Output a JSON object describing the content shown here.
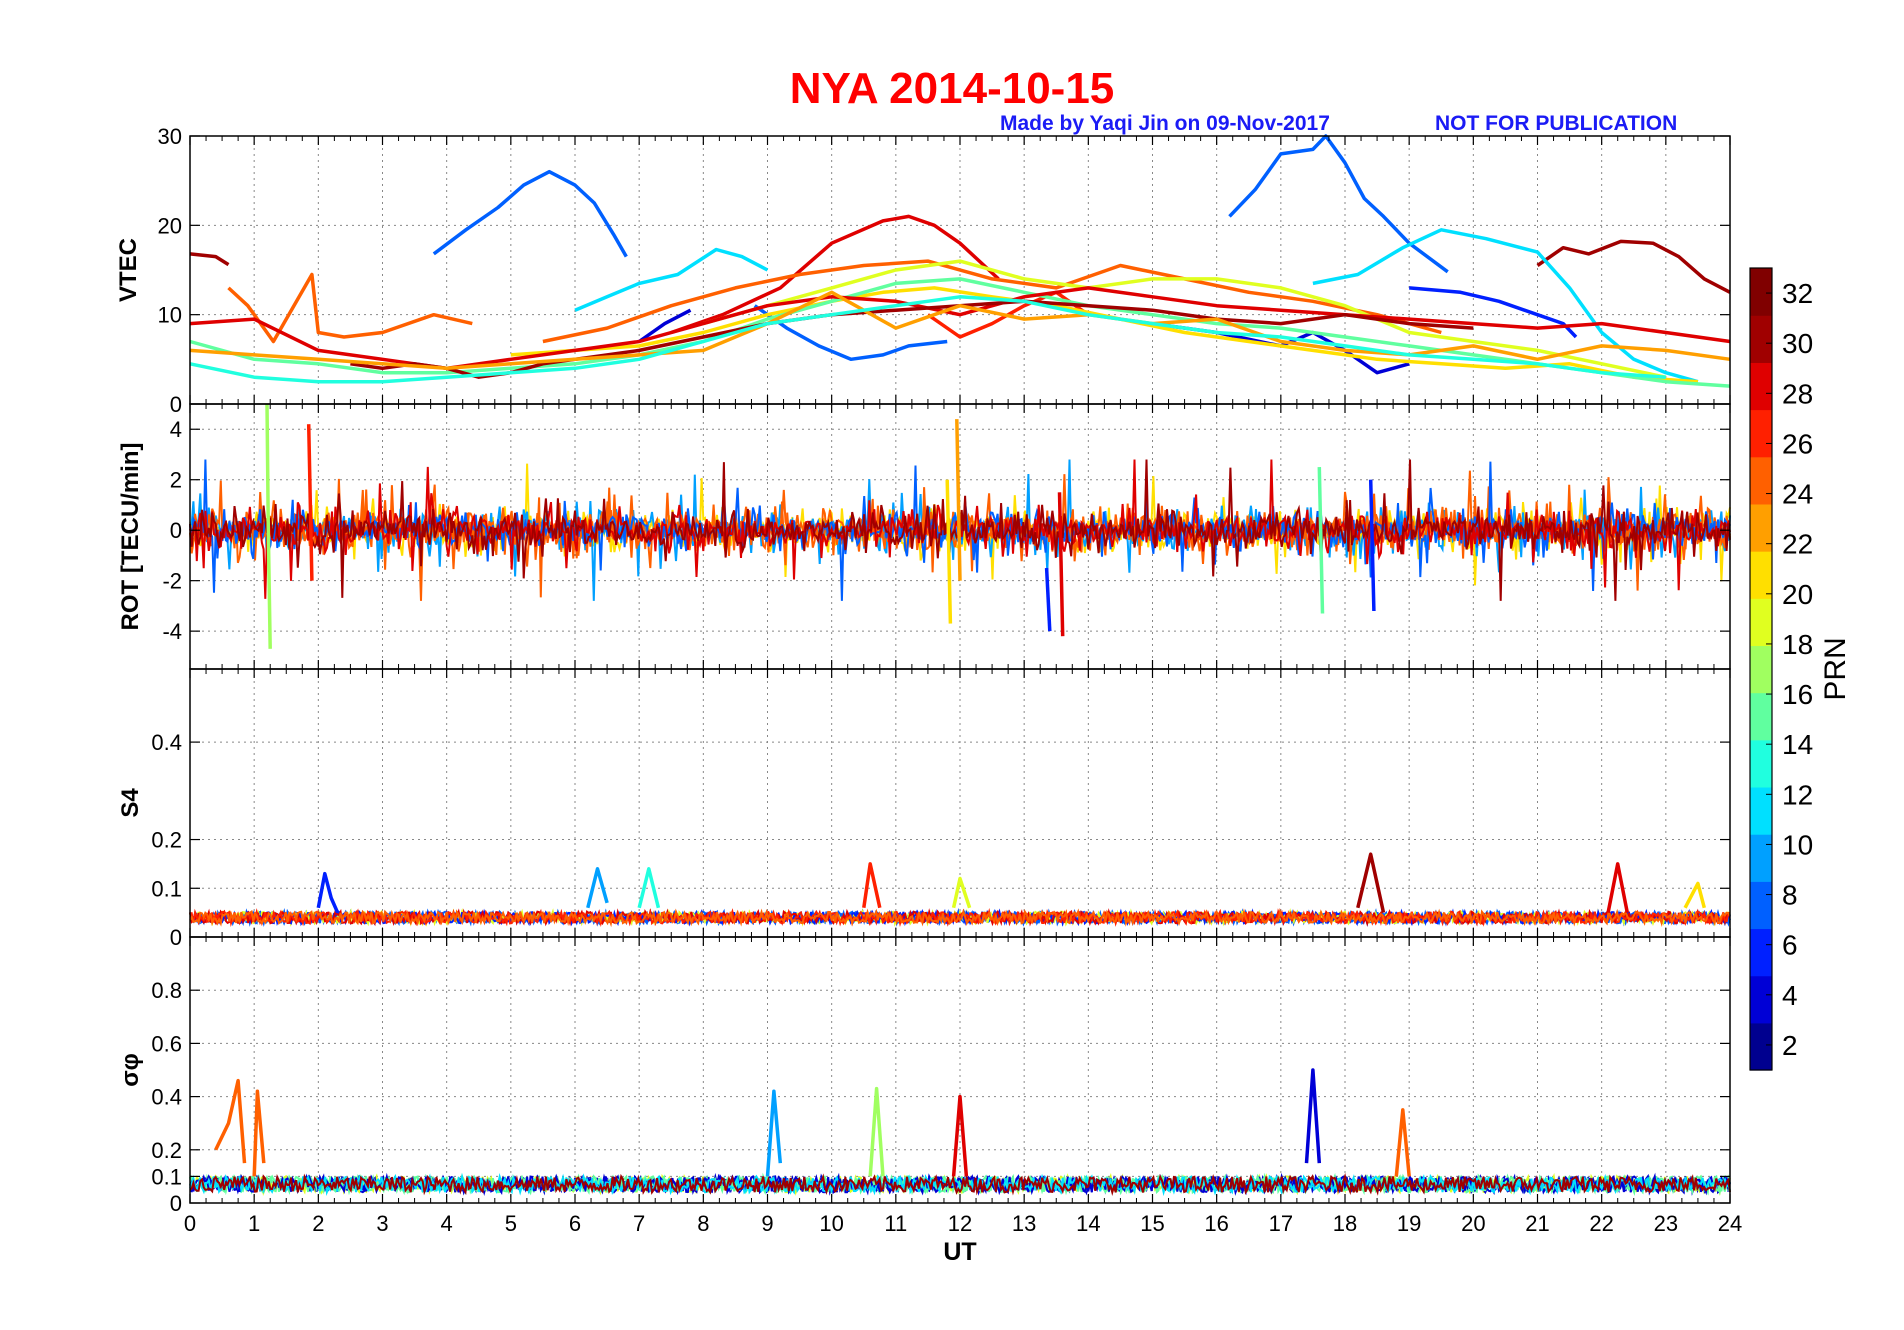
{
  "figure": {
    "title": "NYA   2014-10-15",
    "credit": "Made by Yaqi Jin on 09-Nov-2017",
    "notice": "NOT FOR PUBLICATION"
  },
  "colors": {
    "title": "#ff0000",
    "annotation": "#1b1bf5",
    "colormap": [
      "#00008f",
      "#0000d6",
      "#0020ff",
      "#0060ff",
      "#00a0ff",
      "#00e0ff",
      "#20ffdf",
      "#60ff9f",
      "#a0ff60",
      "#e0ff20",
      "#ffdf00",
      "#ff9f00",
      "#ff6000",
      "#ff2000",
      "#df0000",
      "#a00000",
      "#800000"
    ]
  },
  "chart_data": [
    {
      "panel": "vtec",
      "type": "line",
      "ylabel": "VTEC",
      "xlim": [
        0,
        24
      ],
      "ylim": [
        0,
        30
      ],
      "yticks": [
        0,
        10,
        20,
        30
      ],
      "grid": true,
      "series": [
        {
          "prn": 7,
          "x": [
            3.8,
            4.3,
            4.8,
            5.2,
            5.6,
            6.0,
            6.3,
            6.6,
            6.8
          ],
          "y": [
            16.8,
            19.5,
            22,
            24.5,
            26,
            24.5,
            22.5,
            19,
            16.5
          ]
        },
        {
          "prn": 7,
          "x": [
            16.2,
            16.6,
            17.0,
            17.5,
            17.7,
            18.0,
            18.3,
            18.6,
            19.0,
            19.6
          ],
          "y": [
            21,
            24,
            28,
            28.5,
            30,
            27,
            23,
            21,
            18,
            14.8
          ]
        },
        {
          "prn": 30,
          "x": [
            0.0,
            0.4,
            0.6
          ],
          "y": [
            16.8,
            16.5,
            15.6
          ]
        },
        {
          "prn": 30,
          "x": [
            21.0,
            21.4,
            21.8,
            22.3,
            22.8,
            23.2,
            23.6,
            24.0
          ],
          "y": [
            15.5,
            17.5,
            16.8,
            18.2,
            18,
            16.5,
            14,
            12.5
          ]
        },
        {
          "prn": 28,
          "x": [
            7.5,
            8.3,
            9.2,
            10.0,
            10.8,
            11.2,
            11.6,
            12.0,
            12.6
          ],
          "y": [
            8,
            10,
            13,
            18,
            20.5,
            21,
            20,
            18,
            14
          ]
        },
        {
          "prn": 25,
          "x": [
            0.6,
            0.9,
            1.3,
            1.9,
            2.0,
            2.4,
            3.0,
            3.8,
            4.4
          ],
          "y": [
            13,
            11,
            7,
            14.5,
            8,
            7.5,
            8,
            10,
            9
          ]
        },
        {
          "prn": 25,
          "x": [
            5.5,
            6.5,
            7.5,
            8.5,
            9.5,
            10.5,
            11.5,
            12.5,
            13.5,
            14.5,
            15.5,
            16.5,
            17.5,
            18.5,
            19.5
          ],
          "y": [
            7,
            8.5,
            11,
            13,
            14.5,
            15.5,
            16,
            14,
            13,
            15.5,
            14,
            12.5,
            11.5,
            10,
            8
          ]
        },
        {
          "prn": 10,
          "x": [
            6.0,
            6.5,
            7.0,
            7.6,
            8.2,
            8.6,
            9.0
          ],
          "y": [
            10.5,
            12,
            13.5,
            14.5,
            17.3,
            16.5,
            15
          ]
        },
        {
          "prn": 10,
          "x": [
            17.5,
            18.2,
            18.9,
            19.5,
            20.2,
            21.0,
            21.5,
            22.0,
            22.5,
            23.0,
            23.5
          ],
          "y": [
            13.5,
            14.5,
            17.5,
            19.5,
            18.5,
            17,
            13,
            8,
            5,
            3.5,
            2.5
          ]
        },
        {
          "prn": 7,
          "x": [
            8.8,
            9.3,
            9.8,
            10.3,
            10.8,
            11.2,
            11.8
          ],
          "y": [
            11,
            8.5,
            6.5,
            5,
            5.5,
            6.5,
            7
          ]
        },
        {
          "prn": 5,
          "x": [
            19.0,
            19.8,
            20.4,
            21.0,
            21.4,
            21.6
          ],
          "y": [
            13,
            12.5,
            11.5,
            10,
            9,
            7.5
          ]
        },
        {
          "prn": 3,
          "x": [
            7.0,
            7.4,
            7.8
          ],
          "y": [
            7,
            9,
            10.5
          ]
        },
        {
          "prn": 3,
          "x": [
            15.0,
            16.0,
            17.0,
            17.5,
            18.0,
            18.5,
            19.0
          ],
          "y": [
            9,
            8,
            6.5,
            8,
            6,
            3.5,
            4.5
          ]
        },
        {
          "prn": 26,
          "x": [
            11.5,
            12.0,
            12.5,
            13.0,
            13.5,
            14.0
          ],
          "y": [
            10,
            7.5,
            9,
            11,
            12.5,
            10
          ]
        },
        {
          "prn": 21,
          "x": [
            5.0,
            6.0,
            7.0,
            8.0,
            9.0,
            10.0,
            10.8,
            11.6,
            12.5,
            13.5,
            14.5,
            15.5,
            16.5,
            17.5,
            18.5,
            19.5,
            20.5,
            21.5,
            22.5,
            23.5
          ],
          "y": [
            5.5,
            6,
            6.5,
            8,
            10,
            11.5,
            12.5,
            13,
            12,
            11,
            9.5,
            8,
            7,
            6,
            5,
            4.5,
            4,
            4.5,
            3,
            2.5
          ]
        },
        {
          "prn": 15,
          "x": [
            0.0,
            1.0,
            2.0,
            3.0,
            4.0,
            5.0,
            6.0,
            7.0,
            8.0,
            9.0,
            10.0,
            11.0,
            12.0,
            13.0,
            14.0,
            15.0,
            16.0,
            17.0,
            18.0,
            19.0,
            20.0,
            21.0,
            22.0,
            23.0,
            24.0
          ],
          "y": [
            7,
            5,
            4.5,
            3.5,
            3.5,
            4,
            4.5,
            5.5,
            7,
            9.5,
            11.5,
            13.5,
            14,
            12.5,
            11,
            10,
            9,
            8.5,
            7.5,
            6.5,
            5.5,
            4.5,
            3.5,
            2.5,
            2
          ]
        },
        {
          "prn": 18,
          "x": [
            8.0,
            9.0,
            10.0,
            11.0,
            12.0,
            13.0,
            14.0,
            15.0,
            16.0,
            17.0,
            18.0,
            19.0,
            20.0,
            21.0,
            22.0,
            23.0
          ],
          "y": [
            9,
            11,
            13,
            15,
            16,
            14,
            13,
            14,
            14,
            13,
            11,
            8,
            7,
            6,
            4.5,
            3
          ]
        },
        {
          "prn": 29,
          "x": [
            0.0,
            1.0,
            2.0,
            3.0,
            4.0,
            5.0,
            6.0,
            7.0,
            8.0,
            9.0,
            10.0,
            11.0,
            12.0,
            13.0,
            14.0,
            15.0,
            16.0,
            17.0,
            18.0,
            19.0,
            20.0,
            21.0,
            22.0,
            23.0,
            24.0
          ],
          "y": [
            9,
            9.5,
            6,
            5,
            4,
            5,
            6,
            7,
            9,
            11,
            12,
            11.5,
            10,
            12,
            13,
            12,
            11,
            10.5,
            10,
            9.5,
            9,
            8.5,
            9,
            8,
            7
          ]
        },
        {
          "prn": 31,
          "x": [
            2.5,
            3.0,
            3.5,
            4.0,
            4.5,
            5.0,
            5.5,
            6.0,
            7.0,
            8.0,
            9.0,
            10.0,
            11.0,
            12.0,
            13.0,
            14.0,
            15.0,
            16.0,
            17.0,
            18.0,
            19.0,
            20.0
          ],
          "y": [
            4.5,
            4,
            4.5,
            4,
            3,
            3.5,
            4.5,
            5,
            6,
            7.5,
            9,
            10,
            10.5,
            11,
            11.5,
            11,
            10.5,
            9.5,
            9,
            10,
            9,
            8.5
          ]
        },
        {
          "prn": 22,
          "x": [
            0.0,
            1.0,
            2.0,
            3.0,
            4.0,
            5.0,
            6.0,
            7.0,
            8.0,
            9.0,
            10.0,
            11.0,
            12.0,
            13.0,
            14.0,
            15.0,
            16.0,
            17.0,
            18.0,
            19.0,
            20.0,
            21.0,
            22.0,
            23.0,
            24.0
          ],
          "y": [
            6,
            5.5,
            5,
            4.5,
            4,
            4.5,
            5,
            5.5,
            6,
            9,
            12.5,
            8.5,
            11,
            9.5,
            10,
            9,
            9.5,
            7,
            6,
            5.5,
            6.5,
            5,
            6.5,
            6,
            5
          ]
        },
        {
          "prn": 12,
          "x": [
            0.0,
            1.0,
            2.0,
            3.0,
            4.0,
            5.0,
            6.0,
            7.0,
            8.0,
            9.0,
            10.0,
            11.0,
            12.0,
            13.0,
            14.0,
            15.0,
            16.0,
            17.0,
            18.0,
            19.0,
            20.0,
            21.0,
            22.0,
            23.0
          ],
          "y": [
            4.5,
            3,
            2.5,
            2.5,
            3,
            3.5,
            4,
            5,
            7,
            9,
            10,
            11,
            12,
            11.5,
            10,
            9,
            8,
            7.5,
            6.5,
            5.5,
            5,
            4.5,
            3.5,
            3
          ]
        }
      ]
    },
    {
      "panel": "rot",
      "type": "line",
      "ylabel": "ROT [TECU/min]",
      "xlim": [
        0,
        24
      ],
      "ylim": [
        -5.5,
        5
      ],
      "yticks": [
        -4,
        -2,
        0,
        2,
        4
      ],
      "grid": true,
      "series": [
        {
          "prn": 16,
          "x": [
            1.2,
            1.22,
            1.25
          ],
          "y": [
            5,
            0,
            -4.7
          ]
        },
        {
          "prn": 26,
          "x": [
            1.85,
            1.9
          ],
          "y": [
            4.2,
            -2
          ]
        },
        {
          "prn": 22,
          "x": [
            11.95,
            12.0
          ],
          "y": [
            4.4,
            -2
          ]
        },
        {
          "prn": 5,
          "x": [
            13.35,
            13.4
          ],
          "y": [
            -1.5,
            -4
          ]
        },
        {
          "prn": 28,
          "x": [
            13.55,
            13.6
          ],
          "y": [
            1.5,
            -4.2
          ]
        },
        {
          "prn": 4,
          "x": [
            18.4,
            18.45
          ],
          "y": [
            2,
            -3.2
          ]
        },
        {
          "prn": 20,
          "x": [
            11.8,
            11.85
          ],
          "y": [
            2,
            -3.7
          ]
        },
        {
          "prn": 14,
          "x": [
            17.6,
            17.65
          ],
          "y": [
            2.5,
            -3.3
          ]
        }
      ]
    },
    {
      "panel": "s4",
      "type": "line",
      "ylabel": "S4",
      "xlim": [
        0,
        24
      ],
      "ylim": [
        0,
        0.55
      ],
      "yticks": [
        0,
        0.1,
        0.2,
        0.4
      ],
      "grid": true,
      "series": [
        {
          "prn": 5,
          "x": [
            2.0,
            2.1,
            2.2,
            2.3
          ],
          "y": [
            0.06,
            0.13,
            0.08,
            0.05
          ]
        },
        {
          "prn": 8,
          "x": [
            6.2,
            6.35,
            6.5
          ],
          "y": [
            0.06,
            0.14,
            0.07
          ]
        },
        {
          "prn": 12,
          "x": [
            7.0,
            7.15,
            7.3
          ],
          "y": [
            0.06,
            0.14,
            0.06
          ]
        },
        {
          "prn": 27,
          "x": [
            10.5,
            10.6,
            10.75
          ],
          "y": [
            0.06,
            0.15,
            0.06
          ]
        },
        {
          "prn": 18,
          "x": [
            11.9,
            12.0,
            12.15
          ],
          "y": [
            0.06,
            0.12,
            0.06
          ]
        },
        {
          "prn": 31,
          "x": [
            18.2,
            18.4,
            18.6
          ],
          "y": [
            0.06,
            0.17,
            0.05
          ]
        },
        {
          "prn": 28,
          "x": [
            22.1,
            22.25,
            22.4
          ],
          "y": [
            0.05,
            0.15,
            0.05
          ]
        },
        {
          "prn": 20,
          "x": [
            23.3,
            23.5,
            23.6
          ],
          "y": [
            0.06,
            0.11,
            0.06
          ]
        }
      ]
    },
    {
      "panel": "sigma_phi",
      "type": "line",
      "ylabel": "σφ",
      "xlim": [
        0,
        24
      ],
      "ylim": [
        0,
        1
      ],
      "yticks": [
        0,
        0.1,
        0.2,
        0.4,
        0.6,
        0.8
      ],
      "grid": true,
      "series": [
        {
          "prn": 24,
          "x": [
            0.4,
            0.6,
            0.75,
            0.85
          ],
          "y": [
            0.2,
            0.3,
            0.46,
            0.15
          ]
        },
        {
          "prn": 25,
          "x": [
            1.0,
            1.05,
            1.15
          ],
          "y": [
            0.1,
            0.42,
            0.15
          ]
        },
        {
          "prn": 9,
          "x": [
            9.0,
            9.1,
            9.2
          ],
          "y": [
            0.1,
            0.42,
            0.15
          ]
        },
        {
          "prn": 16,
          "x": [
            10.6,
            10.7,
            10.8
          ],
          "y": [
            0.1,
            0.43,
            0.1
          ]
        },
        {
          "prn": 28,
          "x": [
            11.9,
            12.0,
            12.1
          ],
          "y": [
            0.1,
            0.4,
            0.1
          ]
        },
        {
          "prn": 2,
          "x": [
            17.4,
            17.5,
            17.6
          ],
          "y": [
            0.15,
            0.5,
            0.15
          ]
        },
        {
          "prn": 24,
          "x": [
            18.8,
            18.9,
            19.0
          ],
          "y": [
            0.1,
            0.35,
            0.1
          ]
        }
      ]
    }
  ],
  "x_axis": {
    "label": "UT",
    "ticks": [
      "0",
      "1",
      "2",
      "3",
      "4",
      "5",
      "6",
      "7",
      "8",
      "9",
      "10",
      "11",
      "12",
      "13",
      "14",
      "15",
      "16",
      "17",
      "18",
      "19",
      "20",
      "21",
      "22",
      "23",
      "24"
    ]
  },
  "colorbar": {
    "label": "PRN",
    "range": [
      1,
      33
    ],
    "ticks": [
      "2",
      "4",
      "6",
      "8",
      "10",
      "12",
      "14",
      "16",
      "18",
      "20",
      "22",
      "24",
      "26",
      "28",
      "30",
      "32"
    ]
  }
}
